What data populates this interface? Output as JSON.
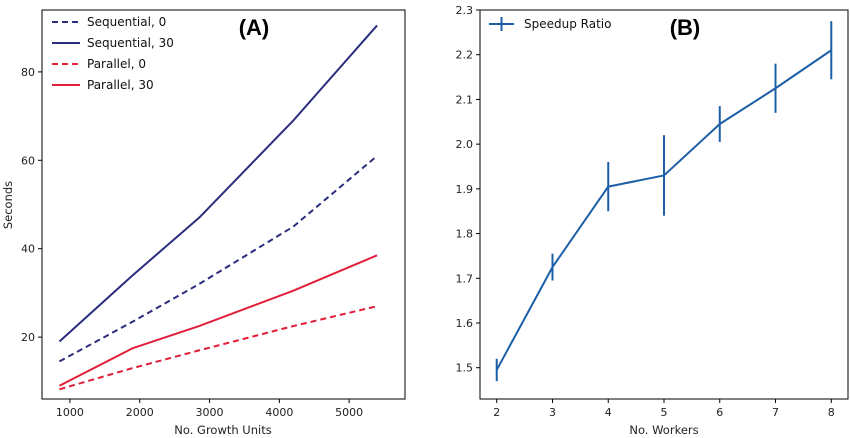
{
  "chart_data": [
    {
      "type": "line",
      "panel_label": "(A)",
      "xlabel": "No. Growth Units",
      "ylabel": "Seconds",
      "xlim": [
        600,
        5800
      ],
      "ylim": [
        6,
        94
      ],
      "xticks": [
        1000,
        2000,
        3000,
        4000,
        5000
      ],
      "yticks": [
        20,
        40,
        60,
        80
      ],
      "legend_position": "top-left",
      "series": [
        {
          "name": "Sequential, 0",
          "color": "#2b2d7e",
          "style": "dashed",
          "x": [
            850,
            1900,
            2850,
            4200,
            5400
          ],
          "y": [
            14.5,
            23.5,
            32,
            45,
            61
          ]
        },
        {
          "name": "Sequential, 30",
          "color": "#2b2d7e",
          "style": "solid",
          "x": [
            850,
            1900,
            2850,
            4200,
            5400
          ],
          "y": [
            19,
            34,
            47,
            69,
            90.5
          ]
        },
        {
          "name": "Parallel, 0",
          "color": "#e0203a",
          "style": "dashed",
          "x": [
            850,
            1900,
            2850,
            4200,
            5400
          ],
          "y": [
            8.2,
            13,
            17,
            22.5,
            27
          ]
        },
        {
          "name": "Parallel, 30",
          "color": "#e0203a",
          "style": "solid",
          "x": [
            850,
            1900,
            2850,
            4200,
            5400
          ],
          "y": [
            9,
            17.5,
            22.5,
            30.5,
            38.5
          ]
        }
      ]
    },
    {
      "type": "line",
      "panel_label": "(B)",
      "xlabel": "No. Workers",
      "ylabel": "",
      "xlim": [
        1.7,
        8.3
      ],
      "ylim": [
        1.43,
        2.3
      ],
      "xticks": [
        2,
        3,
        4,
        5,
        6,
        7,
        8
      ],
      "yticks": [
        "1.5",
        "1.6",
        "1.7",
        "1.8",
        "1.9",
        "2.0",
        "2.1",
        "2.2",
        "2.3"
      ],
      "legend_position": "top-left",
      "series": [
        {
          "name": "Speedup Ratio",
          "color": "#1c5fa8",
          "style": "solid",
          "x": [
            2,
            3,
            4,
            5,
            6,
            7,
            8
          ],
          "y": [
            1.495,
            1.725,
            1.905,
            1.93,
            2.045,
            2.125,
            2.21
          ],
          "error": [
            0.025,
            0.03,
            0.055,
            0.09,
            0.04,
            0.055,
            0.065
          ]
        }
      ]
    }
  ]
}
